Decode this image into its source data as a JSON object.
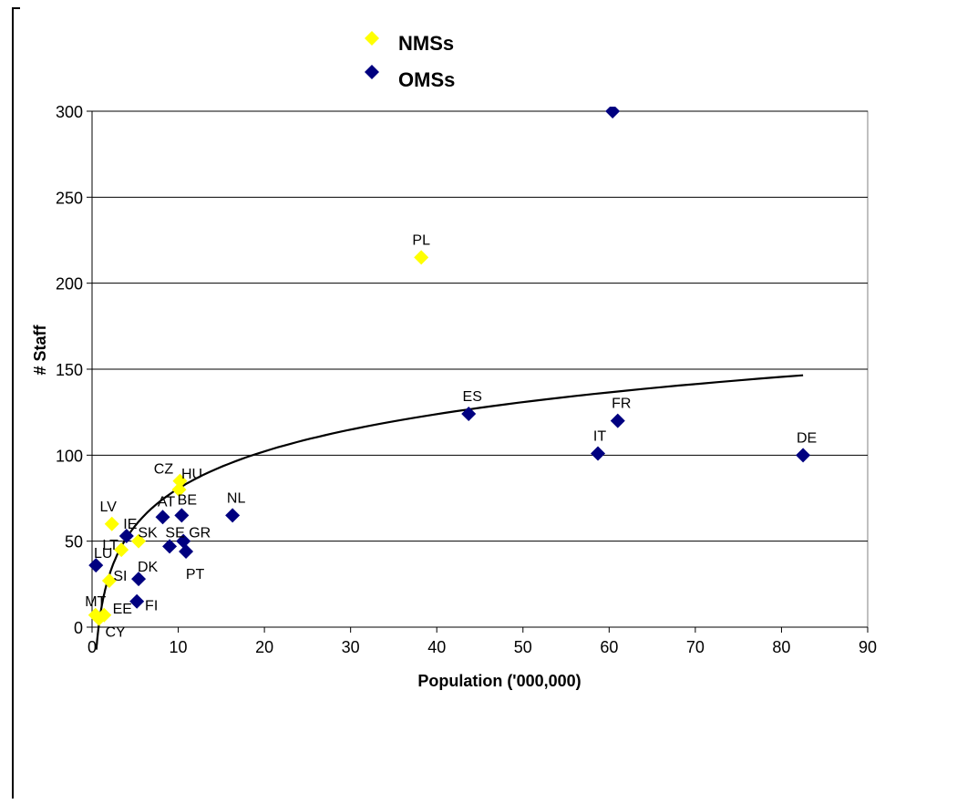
{
  "chart_data": {
    "type": "scatter",
    "title": "",
    "xlabel": "Population ('000,000)",
    "ylabel": "# Staff",
    "xlim": [
      0,
      90
    ],
    "ylim": [
      0,
      300
    ],
    "x_ticks": [
      "0",
      "10",
      "20",
      "30",
      "40",
      "50",
      "60",
      "70",
      "80",
      "90"
    ],
    "y_ticks": [
      "0",
      "50",
      "100",
      "150",
      "200",
      "250",
      "300"
    ],
    "grid": "horizontal",
    "legend_position": "top-center",
    "series": [
      {
        "name": "NMSs",
        "color": "#ffff00",
        "marker": "diamond",
        "points": [
          {
            "label": "PL",
            "x": 38.2,
            "y": 215
          },
          {
            "label": "CZ",
            "x": 10.2,
            "y": 85
          },
          {
            "label": "HU",
            "x": 10.1,
            "y": 80
          },
          {
            "label": "LV",
            "x": 2.3,
            "y": 60
          },
          {
            "label": "SK",
            "x": 5.4,
            "y": 50
          },
          {
            "label": "LT",
            "x": 3.4,
            "y": 45
          },
          {
            "label": "SI",
            "x": 2.0,
            "y": 27
          },
          {
            "label": "MT",
            "x": 0.4,
            "y": 7
          },
          {
            "label": "EE",
            "x": 1.4,
            "y": 7
          },
          {
            "label": "CY",
            "x": 0.8,
            "y": 5
          }
        ]
      },
      {
        "name": "OMSs",
        "color": "#000080",
        "marker": "diamond",
        "points": [
          {
            "label": "",
            "x": 60.4,
            "y": 300
          },
          {
            "label": "ES",
            "x": 43.7,
            "y": 124
          },
          {
            "label": "FR",
            "x": 61.0,
            "y": 120
          },
          {
            "label": "IT",
            "x": 58.7,
            "y": 101
          },
          {
            "label": "DE",
            "x": 82.5,
            "y": 100
          },
          {
            "label": "NL",
            "x": 16.3,
            "y": 65
          },
          {
            "label": "AT",
            "x": 8.2,
            "y": 64
          },
          {
            "label": "BE",
            "x": 10.4,
            "y": 65
          },
          {
            "label": "IE",
            "x": 4.0,
            "y": 53
          },
          {
            "label": "SE",
            "x": 9.0,
            "y": 47
          },
          {
            "label": "GR",
            "x": 10.6,
            "y": 50
          },
          {
            "label": "PT",
            "x": 10.9,
            "y": 44
          },
          {
            "label": "LU",
            "x": 0.45,
            "y": 36
          },
          {
            "label": "DK",
            "x": 5.4,
            "y": 28
          },
          {
            "label": "FI",
            "x": 5.2,
            "y": 15
          }
        ]
      }
    ],
    "trendline": {
      "type": "logarithmic",
      "color": "#000000",
      "x_start": 0.5,
      "x_end": 82.5
    }
  }
}
